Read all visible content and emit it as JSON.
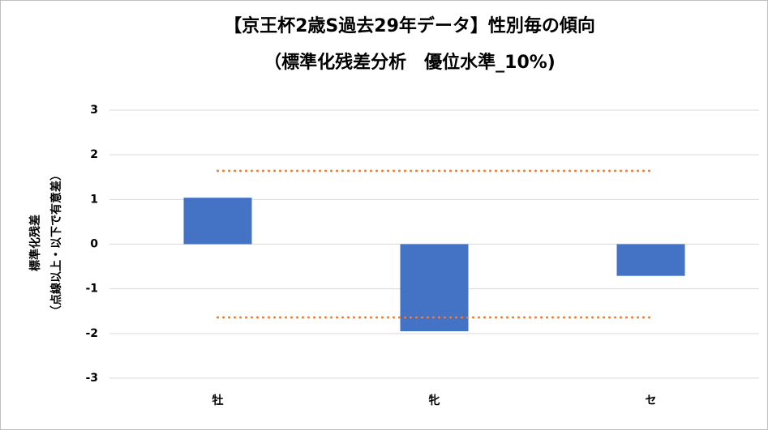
{
  "chart_data": {
    "type": "bar",
    "title": [
      "【京王杯2歳S過去29年データ】性別毎の傾向",
      "（標準化残差分析　優位水準_10%)"
    ],
    "y_label": [
      "標準化残差",
      "（点線以上・以下で有意差）"
    ],
    "categories": [
      "牡",
      "牝",
      "セ"
    ],
    "values": [
      1.04,
      -1.95,
      -0.71
    ],
    "color": "#4472c4",
    "threshold_lines": [
      1.64,
      -1.64
    ],
    "threshold_color": "#ed7d31",
    "ylim": [
      -3,
      3
    ],
    "yticks": [
      -3,
      -2,
      -1,
      0,
      1,
      2,
      3
    ],
    "grid": true
  }
}
